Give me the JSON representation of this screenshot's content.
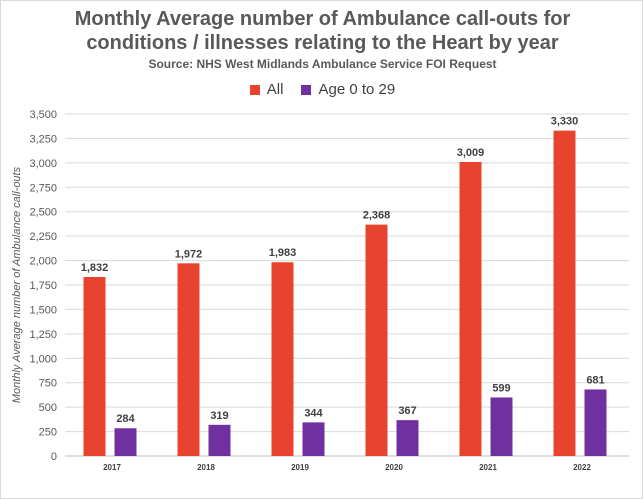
{
  "chart_data": {
    "type": "bar",
    "title_line1": "Monthly Average number of Ambulance call-outs for",
    "title_line2": "conditions / illnesses relating to the Heart by year",
    "subtitle": "Source: NHS West Midlands Ambulance Service FOI Request",
    "xlabel": "",
    "ylabel": "Monthly Average number of Ambulance call-outs",
    "categories": [
      "2017",
      "2018",
      "2019",
      "2020",
      "2021",
      "2022"
    ],
    "series": [
      {
        "name": "All",
        "color": "#e8432e",
        "values": [
          1832,
          1972,
          1983,
          2368,
          3009,
          3330
        ],
        "labels": [
          "1,832",
          "1,972",
          "1,983",
          "2,368",
          "3,009",
          "3,330"
        ]
      },
      {
        "name": "Age 0 to 29",
        "color": "#7030a0",
        "values": [
          284,
          319,
          344,
          367,
          599,
          681
        ],
        "labels": [
          "284",
          "319",
          "344",
          "367",
          "599",
          "681"
        ]
      }
    ],
    "ylim": [
      0,
      3500
    ],
    "yticks": [
      0,
      250,
      500,
      750,
      1000,
      1250,
      1500,
      1750,
      2000,
      2250,
      2500,
      2750,
      3000,
      3250,
      3500
    ],
    "ytick_labels": [
      "0",
      "250",
      "500",
      "750",
      "1,000",
      "1,250",
      "1,500",
      "1,750",
      "2,000",
      "2,250",
      "2,500",
      "2,750",
      "3,000",
      "3,250",
      "3,500"
    ],
    "grid": true,
    "legend_position": "top-center"
  }
}
